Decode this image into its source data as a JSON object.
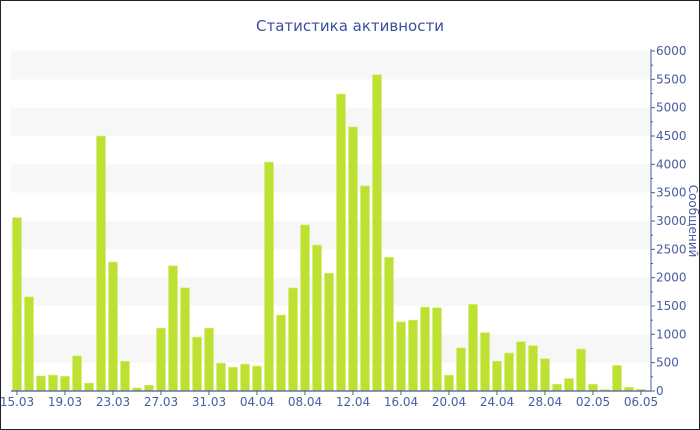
{
  "chart_data": {
    "type": "bar",
    "title": "Статистика активности",
    "xlabel": "",
    "ylabel": "Сообщений",
    "ylim": [
      0,
      6000
    ],
    "yticks": [
      0,
      500,
      1000,
      1500,
      2000,
      2500,
      3000,
      3500,
      4000,
      4500,
      5000,
      5500,
      6000
    ],
    "y_axis_side": "right",
    "grid": "alternating horizontal bands",
    "bar_color": "#bde132",
    "axis_color": "#4a5c9e",
    "xtick_labels": [
      "15.03",
      "19.03",
      "23.03",
      "27.03",
      "31.03",
      "04.04",
      "08.04",
      "12.04",
      "16.04",
      "20.04",
      "24.04",
      "28.04",
      "02.05",
      "06.05"
    ],
    "categories": [
      "15.03",
      "16.03",
      "17.03",
      "18.03",
      "19.03",
      "20.03",
      "21.03",
      "22.03",
      "23.03",
      "24.03",
      "25.03",
      "26.03",
      "27.03",
      "28.03",
      "29.03",
      "30.03",
      "31.03",
      "01.04",
      "02.04",
      "03.04",
      "04.04",
      "05.04",
      "06.04",
      "07.04",
      "08.04",
      "09.04",
      "10.04",
      "11.04",
      "12.04",
      "13.04",
      "14.04",
      "15.04",
      "16.04",
      "17.04",
      "18.04",
      "19.04",
      "20.04",
      "21.04",
      "22.04",
      "23.04",
      "24.04",
      "25.04",
      "26.04",
      "27.04",
      "28.04",
      "29.04",
      "30.04",
      "01.05",
      "02.05",
      "03.05",
      "04.05",
      "05.05",
      "06.05"
    ],
    "values": [
      3060,
      1660,
      265,
      280,
      260,
      620,
      140,
      4500,
      2275,
      525,
      55,
      100,
      1110,
      2210,
      1820,
      950,
      1110,
      490,
      420,
      475,
      440,
      4040,
      1340,
      1820,
      2930,
      2575,
      2080,
      5240,
      4660,
      3620,
      5580,
      2360,
      1220,
      1250,
      1480,
      1470,
      280,
      760,
      1530,
      1030,
      525,
      670,
      870,
      800,
      570,
      120,
      220,
      740,
      120,
      25,
      450,
      65,
      30
    ]
  }
}
